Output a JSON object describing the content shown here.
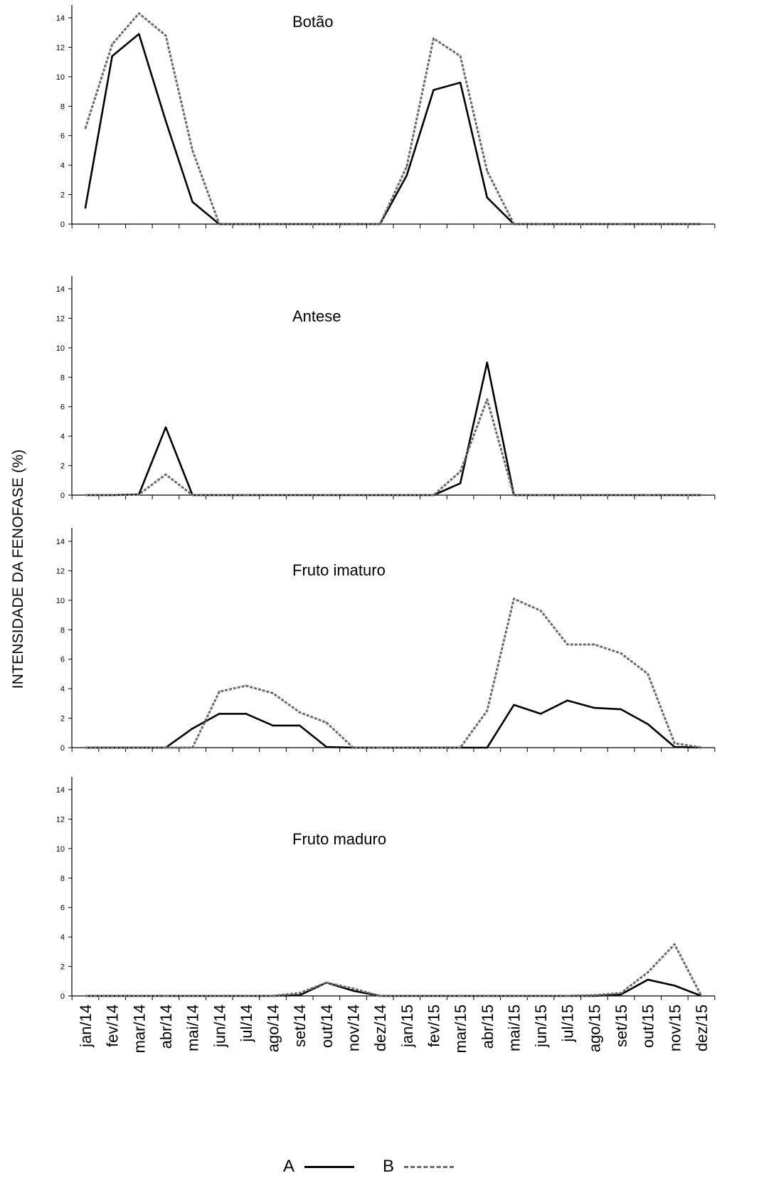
{
  "chart_data": {
    "type": "line",
    "ylabel": "INTENSIDADE DA FENOFASE (%)",
    "xlabel": "",
    "ylim": [
      0,
      14
    ],
    "yticks": [
      0,
      2,
      4,
      6,
      8,
      10,
      12,
      14
    ],
    "categories": [
      "jan/14",
      "fev/14",
      "mar/14",
      "abr/14",
      "mai/14",
      "jun/14",
      "jul/14",
      "ago/14",
      "set/14",
      "out/14",
      "nov/14",
      "dez/14",
      "jan/15",
      "fev/15",
      "mar/15",
      "abr/15",
      "mai/15",
      "jun/15",
      "jul/15",
      "ago/15",
      "set/15",
      "out/15",
      "nov/15",
      "dez/15"
    ],
    "legend": [
      {
        "label": "A",
        "style": "solid",
        "color": "#000000"
      },
      {
        "label": "B",
        "style": "dashed",
        "color": "#6b6b6b"
      }
    ],
    "panels": [
      {
        "title": "Botão",
        "series": [
          {
            "name": "A",
            "values": [
              1.1,
              11.4,
              12.9,
              7.0,
              1.5,
              0,
              0,
              0,
              0,
              0,
              0,
              0,
              3.3,
              9.1,
              9.6,
              1.8,
              0,
              0,
              0,
              0,
              0,
              0,
              0,
              0
            ]
          },
          {
            "name": "B",
            "values": [
              6.5,
              12.2,
              14.3,
              12.8,
              5.0,
              0,
              0,
              0,
              0,
              0,
              0,
              0,
              3.9,
              12.6,
              11.4,
              3.6,
              0,
              0,
              0,
              0,
              0,
              0,
              0,
              0
            ]
          }
        ]
      },
      {
        "title": "Antese",
        "series": [
          {
            "name": "A",
            "values": [
              0,
              0,
              0.05,
              4.6,
              0,
              0,
              0,
              0,
              0,
              0,
              0,
              0,
              0,
              0,
              0.8,
              9.0,
              0,
              0,
              0,
              0,
              0,
              0,
              0,
              0
            ]
          },
          {
            "name": "B",
            "values": [
              0,
              0,
              0.05,
              1.4,
              0,
              0,
              0,
              0,
              0,
              0,
              0,
              0,
              0,
              0,
              1.6,
              6.5,
              0,
              0,
              0,
              0,
              0,
              0,
              0,
              0
            ]
          }
        ]
      },
      {
        "title": "Fruto imaturo",
        "series": [
          {
            "name": "A",
            "values": [
              0,
              0,
              0,
              0,
              1.3,
              2.3,
              2.3,
              1.5,
              1.5,
              0.05,
              0,
              0,
              0,
              0,
              0,
              0,
              2.9,
              2.3,
              3.2,
              2.7,
              2.6,
              1.6,
              0.05,
              0
            ]
          },
          {
            "name": "B",
            "values": [
              0,
              0,
              0,
              0,
              0,
              3.8,
              4.2,
              3.7,
              2.4,
              1.7,
              0,
              0,
              0,
              0,
              0,
              2.5,
              10.1,
              9.3,
              7.0,
              7.0,
              6.4,
              5.0,
              0.3,
              0
            ]
          }
        ]
      },
      {
        "title": "Fruto maduro",
        "series": [
          {
            "name": "A",
            "values": [
              0,
              0,
              0,
              0,
              0,
              0,
              0,
              0,
              0.05,
              0.9,
              0.35,
              0,
              0,
              0,
              0,
              0,
              0,
              0,
              0,
              0,
              0.1,
              1.1,
              0.7,
              0
            ]
          },
          {
            "name": "B",
            "values": [
              0,
              0,
              0,
              0,
              0,
              0,
              0,
              0,
              0.2,
              0.9,
              0.5,
              0,
              0,
              0,
              0,
              0,
              0,
              0,
              0,
              0.05,
              0.2,
              1.6,
              3.5,
              0
            ]
          }
        ]
      }
    ]
  }
}
